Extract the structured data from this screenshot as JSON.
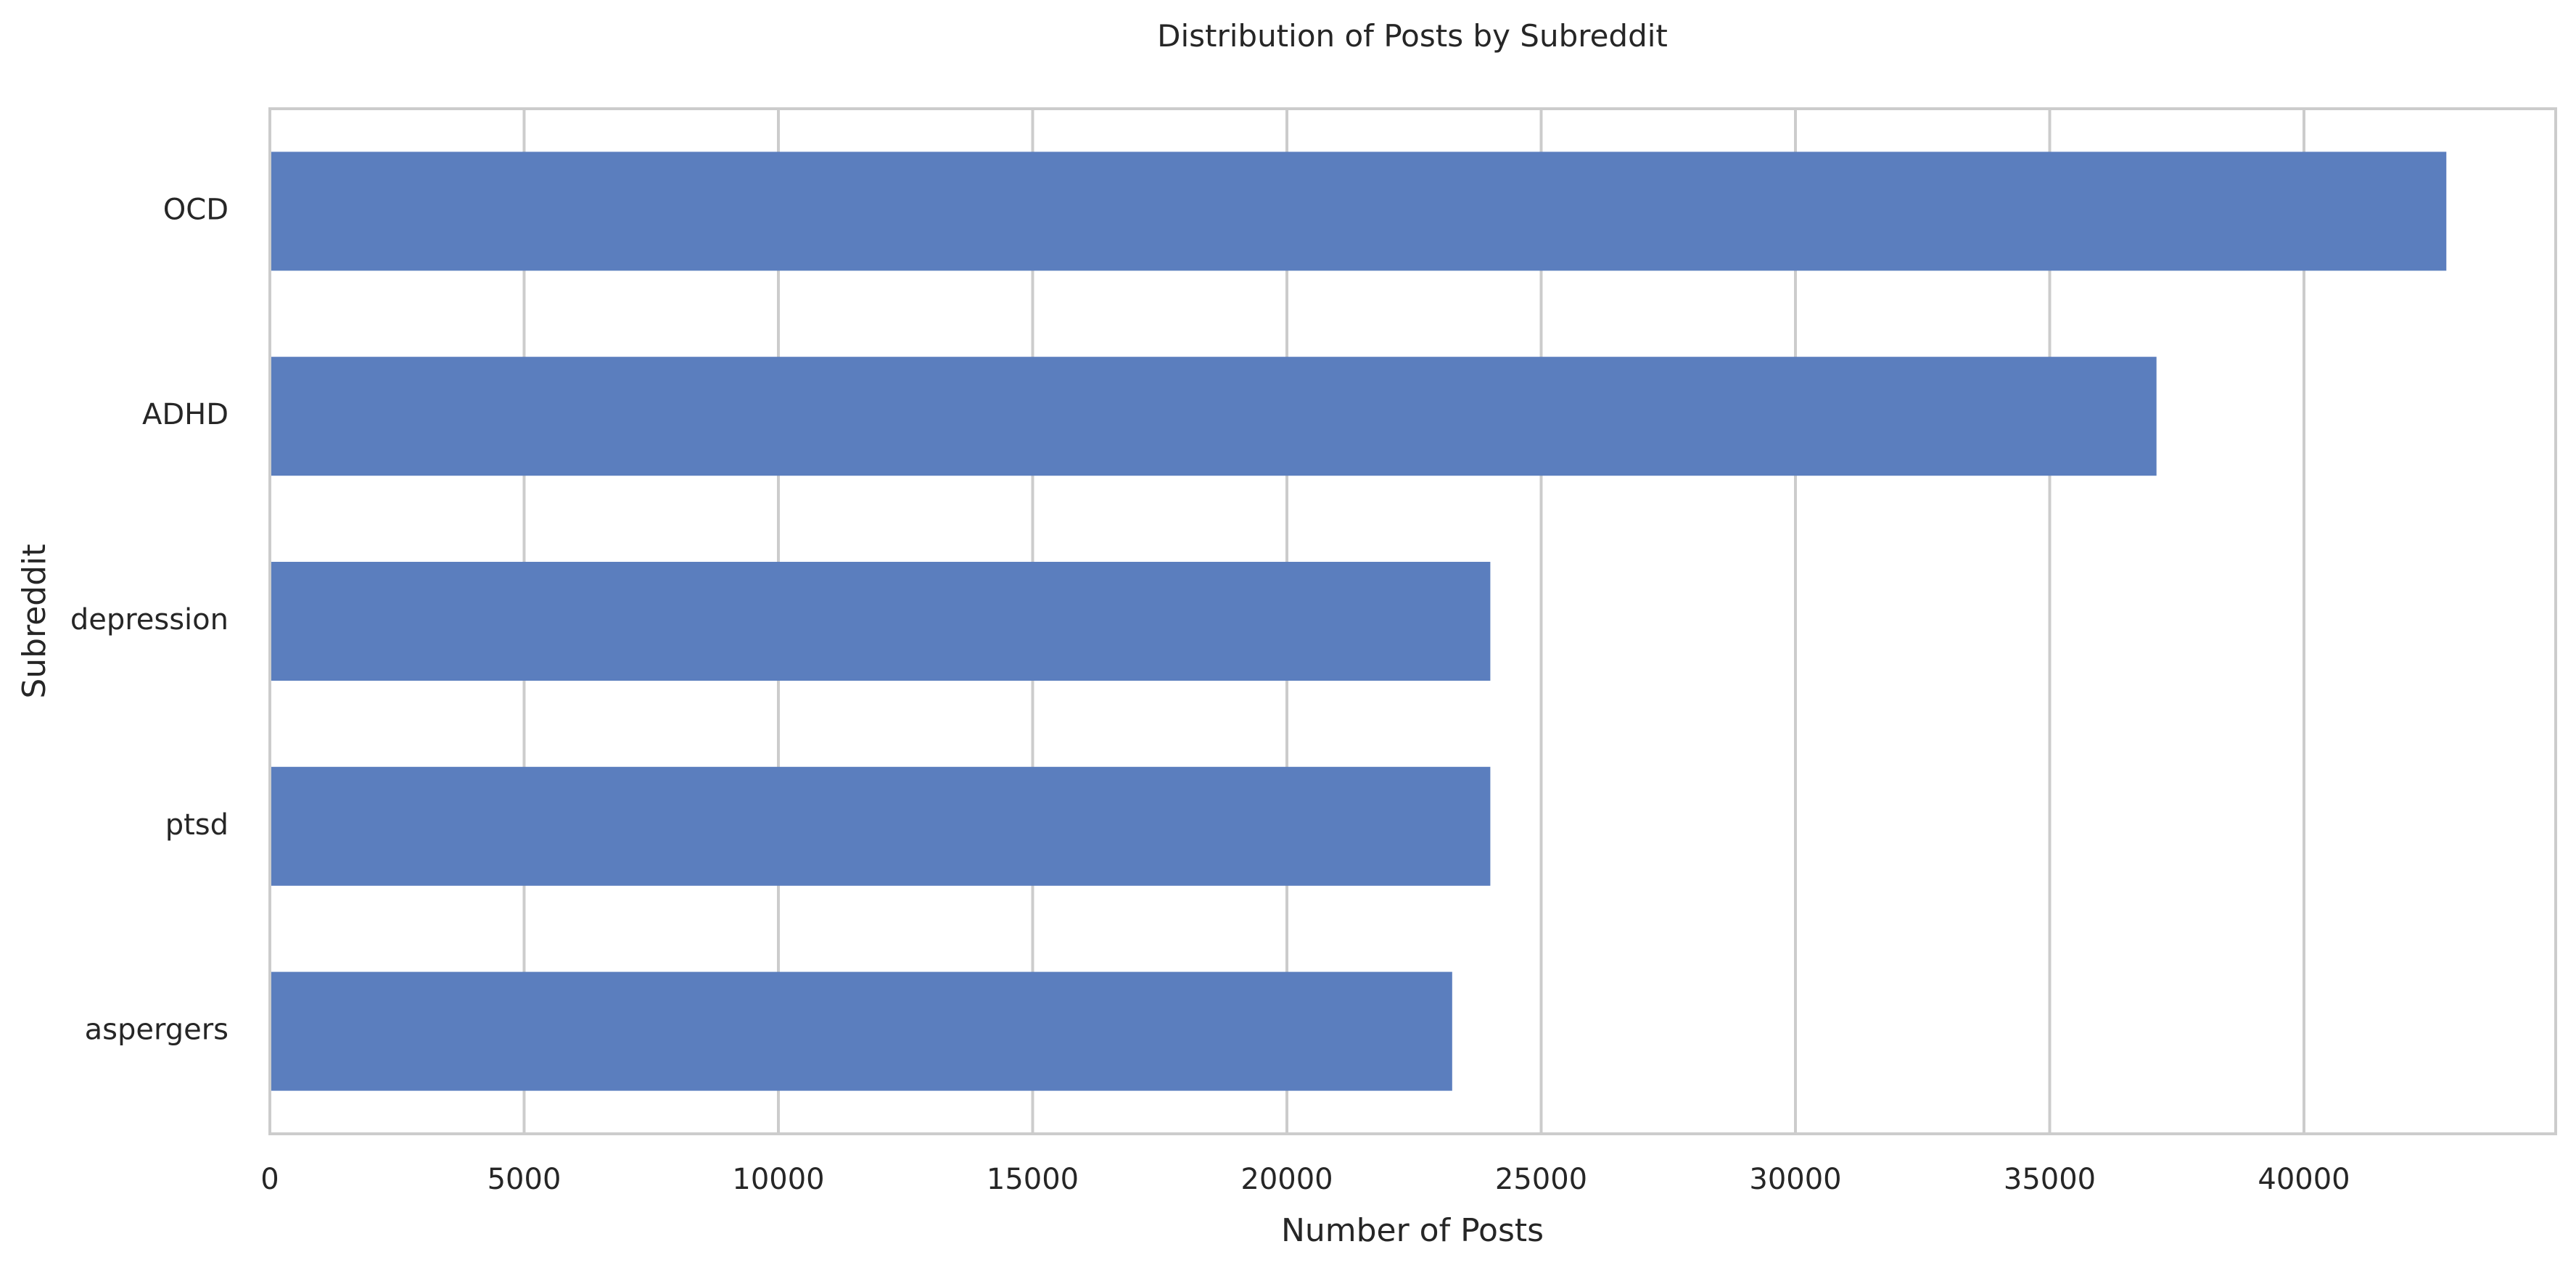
{
  "chart_data": {
    "type": "bar",
    "orientation": "horizontal",
    "title": "Distribution of Posts by Subreddit",
    "xlabel": "Number of Posts",
    "ylabel": "Subreddit",
    "categories": [
      "OCD",
      "ADHD",
      "depression",
      "ptsd",
      "aspergers"
    ],
    "values": [
      42800,
      37100,
      24000,
      24000,
      23250
    ],
    "xlim": [
      0,
      45000
    ],
    "xticks": [
      0,
      5000,
      10000,
      15000,
      20000,
      25000,
      30000,
      35000,
      40000
    ],
    "grid": "vertical",
    "bar_color": "#5b7ebe",
    "grid_color": "#cccccc"
  }
}
